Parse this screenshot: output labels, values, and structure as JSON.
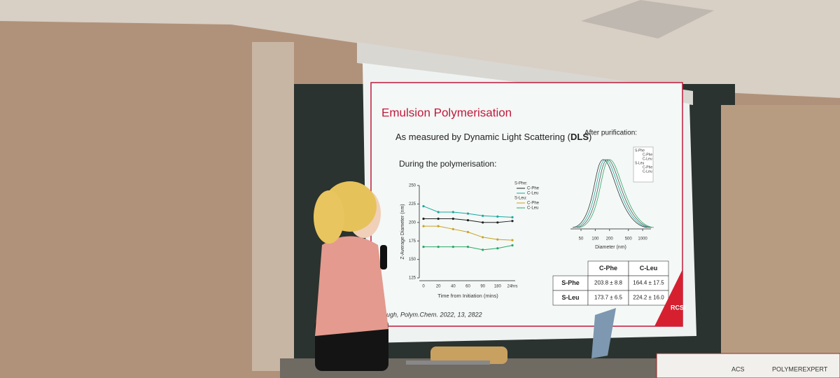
{
  "slide": {
    "title": "Emulsion Polymerisation",
    "subtitle": {
      "text": "As measured by Dynamic Light Scattering (",
      "bold": "DLS",
      "end": ")"
    },
    "during": "During the polymerisation:",
    "after": "After purification:",
    "chart_data": {
      "type": "line",
      "y_label": "Z-Average Diameter (nm)",
      "x_label": "Time from Initiation (mins)",
      "categories": [
        "0",
        "20",
        "40",
        "60",
        "90",
        "180",
        "24hrs"
      ],
      "ylim": [
        125,
        250
      ],
      "yticks": [
        125,
        150,
        175,
        200,
        225,
        250
      ],
      "groups": [
        {
          "name": "S-Phe:",
          "series": [
            {
              "name": "C-Phe",
              "color": "#222222",
              "values": [
                205,
                205,
                205,
                203,
                200,
                200,
                202
              ]
            },
            {
              "name": "C-Leu",
              "color": "#1aa8a0",
              "values": [
                222,
                214,
                214,
                212,
                209,
                208,
                207
              ]
            }
          ]
        },
        {
          "name": "S-Leu:",
          "series": [
            {
              "name": "C-Phe",
              "color": "#c9a227",
              "values": [
                195,
                195,
                191,
                187,
                180,
                177,
                176
              ]
            },
            {
              "name": "C-Leu",
              "color": "#2aa86a",
              "values": [
                167,
                167,
                167,
                167,
                163,
                165,
                169
              ]
            }
          ]
        }
      ]
    },
    "size_chart": {
      "x_label": "Diameter (nm)",
      "xlim": [
        30,
        1500
      ],
      "xticks": [
        50,
        100,
        200,
        500,
        1000
      ],
      "legend": [
        {
          "name": "S-Phe",
          "series": [
            "C-Phe",
            "C-Leu"
          ]
        },
        {
          "name": "S-Leu",
          "series": [
            "C-Phe",
            "C-Leu"
          ]
        }
      ]
    },
    "table": {
      "header": [
        "C-Phe",
        "C-Leu"
      ],
      "rows": [
        [
          "S-Phe",
          "203.8 ± 8.8",
          "164.4 ± 17.5"
        ],
        [
          "S-Leu",
          "173.7 ± 6.5",
          "224.2 ± 16.0"
        ]
      ]
    },
    "reference": "ugh, Polym.Chem. 2022, 13, 2822",
    "logo": "RCSI"
  },
  "banner": [
    "ACS",
    "POLYMEREXPERT"
  ]
}
